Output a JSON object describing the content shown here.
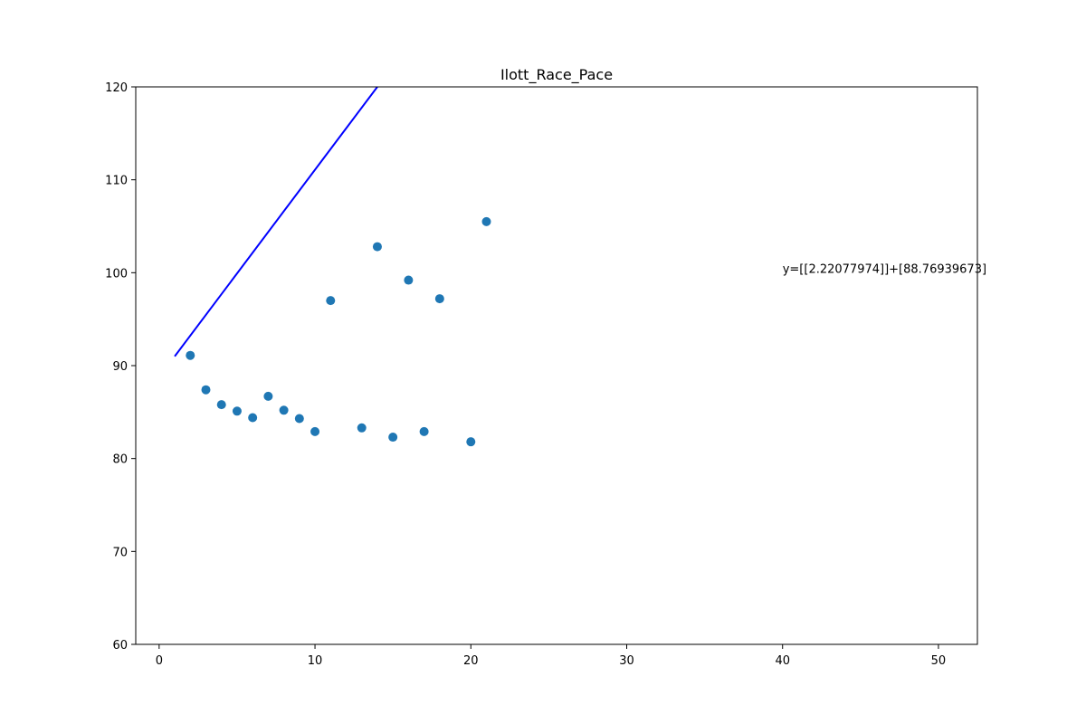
{
  "chart_data": {
    "type": "scatter",
    "title": "Ilott_Race_Pace",
    "xlabel": "",
    "ylabel": "",
    "xlim": [
      -1.5,
      52.5
    ],
    "ylim": [
      60,
      120
    ],
    "xticks": [
      0,
      10,
      20,
      30,
      40,
      50
    ],
    "yticks": [
      60,
      70,
      80,
      90,
      100,
      110,
      120
    ],
    "grid": false,
    "series": [
      {
        "kind": "scatter",
        "color": "#1f77b4",
        "points": [
          {
            "x": 2,
            "y": 91.1
          },
          {
            "x": 3,
            "y": 87.4
          },
          {
            "x": 4,
            "y": 85.8
          },
          {
            "x": 5,
            "y": 85.1
          },
          {
            "x": 6,
            "y": 84.4
          },
          {
            "x": 7,
            "y": 86.7
          },
          {
            "x": 8,
            "y": 85.2
          },
          {
            "x": 9,
            "y": 84.3
          },
          {
            "x": 10,
            "y": 82.9
          },
          {
            "x": 11,
            "y": 97.0
          },
          {
            "x": 13,
            "y": 83.3
          },
          {
            "x": 14,
            "y": 102.8
          },
          {
            "x": 15,
            "y": 82.3
          },
          {
            "x": 16,
            "y": 99.2
          },
          {
            "x": 17,
            "y": 82.9
          },
          {
            "x": 18,
            "y": 97.2
          },
          {
            "x": 20,
            "y": 81.8
          },
          {
            "x": 21,
            "y": 105.5
          }
        ]
      },
      {
        "kind": "line",
        "color": "#0000ff",
        "points": [
          {
            "x": 1,
            "y": 91.0
          },
          {
            "x": 14,
            "y": 120.0
          }
        ]
      }
    ],
    "annotations": [
      {
        "text": "y=[[2.22077974]]+[88.76939673]",
        "x": 40,
        "y": 100
      }
    ]
  }
}
